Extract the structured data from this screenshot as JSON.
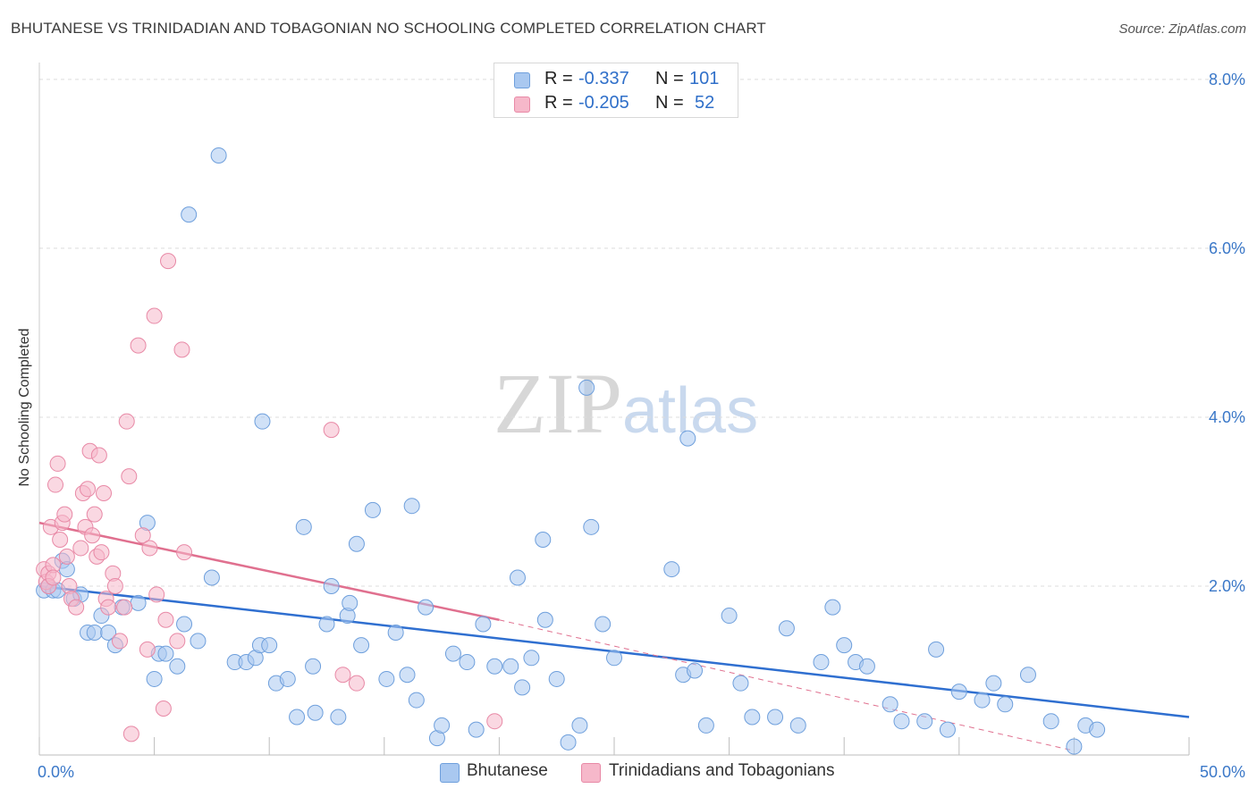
{
  "header": {
    "title": "BHUTANESE VS TRINIDADIAN AND TOBAGONIAN NO SCHOOLING COMPLETED CORRELATION CHART",
    "source": "Source: ZipAtlas.com"
  },
  "watermark": {
    "zip": "ZIP",
    "atlas": "atlas"
  },
  "stats": {
    "rows": [
      {
        "r_label": "R =",
        "r_value": "-0.337",
        "n_label": "N =",
        "n_value": "101",
        "color": "#a9c8f0"
      },
      {
        "r_label": "R =",
        "r_value": "-0.205",
        "n_label": "N =",
        "n_value": "52",
        "color": "#f6b8ca"
      }
    ]
  },
  "legend": {
    "items": [
      {
        "label": "Bhutanese",
        "color": "#a9c8f0"
      },
      {
        "label": "Trinidadians and Tobagonians",
        "color": "#f6b8ca"
      }
    ]
  },
  "chart_data": {
    "type": "scatter",
    "title": "BHUTANESE VS TRINIDADIAN AND TOBAGONIAN NO SCHOOLING COMPLETED CORRELATION CHART",
    "ylabel": "No Schooling Completed",
    "xlabel": "",
    "xlim": [
      0,
      50
    ],
    "ylim": [
      0,
      8.2
    ],
    "x_tick_labels": [
      {
        "value": 0,
        "label": "0.0%"
      },
      {
        "value": 50,
        "label": "50.0%"
      }
    ],
    "y_tick_labels": [
      {
        "value": 2,
        "label": "2.0%"
      },
      {
        "value": 4,
        "label": "4.0%"
      },
      {
        "value": 6,
        "label": "6.0%"
      },
      {
        "value": 8,
        "label": "8.0%"
      }
    ],
    "grid": true,
    "legend_position": "bottom",
    "series": [
      {
        "name": "Bhutanese",
        "color": "#a9c8f0",
        "stroke": "#6e9fdc",
        "trend": {
          "x": [
            0,
            50
          ],
          "y": [
            2.0,
            0.45
          ],
          "color": "#2f6fd0"
        },
        "points": [
          [
            0.2,
            1.95
          ],
          [
            0.4,
            2.0
          ],
          [
            0.6,
            1.95
          ],
          [
            0.8,
            1.95
          ],
          [
            1.0,
            2.3
          ],
          [
            1.2,
            2.2
          ],
          [
            1.5,
            1.85
          ],
          [
            1.8,
            1.9
          ],
          [
            2.1,
            1.45
          ],
          [
            2.4,
            1.45
          ],
          [
            2.7,
            1.65
          ],
          [
            3.0,
            1.45
          ],
          [
            3.3,
            1.3
          ],
          [
            3.6,
            1.75
          ],
          [
            4.3,
            1.8
          ],
          [
            4.7,
            2.75
          ],
          [
            5.2,
            1.2
          ],
          [
            5.5,
            1.2
          ],
          [
            6.0,
            1.05
          ],
          [
            6.3,
            1.55
          ],
          [
            6.9,
            1.35
          ],
          [
            7.5,
            2.1
          ],
          [
            8.5,
            1.1
          ],
          [
            9.0,
            1.1
          ],
          [
            9.4,
            1.15
          ],
          [
            9.6,
            1.3
          ],
          [
            10.0,
            1.3
          ],
          [
            10.3,
            0.85
          ],
          [
            10.8,
            0.9
          ],
          [
            11.2,
            0.45
          ],
          [
            11.9,
            1.05
          ],
          [
            12.0,
            0.5
          ],
          [
            12.5,
            1.55
          ],
          [
            13.0,
            0.45
          ],
          [
            13.4,
            1.65
          ],
          [
            14.0,
            1.3
          ],
          [
            14.5,
            2.9
          ],
          [
            15.1,
            0.9
          ],
          [
            15.5,
            1.45
          ],
          [
            16.0,
            0.95
          ],
          [
            16.4,
            0.65
          ],
          [
            16.8,
            1.75
          ],
          [
            17.3,
            0.2
          ],
          [
            17.5,
            0.35
          ],
          [
            18.0,
            1.2
          ],
          [
            18.6,
            1.1
          ],
          [
            19.0,
            0.3
          ],
          [
            19.3,
            1.55
          ],
          [
            19.8,
            1.05
          ],
          [
            20.5,
            1.05
          ],
          [
            21.0,
            0.8
          ],
          [
            21.4,
            1.15
          ],
          [
            22.0,
            1.6
          ],
          [
            22.5,
            0.9
          ],
          [
            23.0,
            0.15
          ],
          [
            23.5,
            0.35
          ],
          [
            24.0,
            2.7
          ],
          [
            24.5,
            1.55
          ],
          [
            25.0,
            1.15
          ],
          [
            27.5,
            2.2
          ],
          [
            28.0,
            0.95
          ],
          [
            28.5,
            1.0
          ],
          [
            29.0,
            0.35
          ],
          [
            30.0,
            1.65
          ],
          [
            30.5,
            0.85
          ],
          [
            31.0,
            0.45
          ],
          [
            32.0,
            0.45
          ],
          [
            32.5,
            1.5
          ],
          [
            33.0,
            0.35
          ],
          [
            34.0,
            1.1
          ],
          [
            34.5,
            1.75
          ],
          [
            35.0,
            1.3
          ],
          [
            35.5,
            1.1
          ],
          [
            36.0,
            1.05
          ],
          [
            37.0,
            0.6
          ],
          [
            37.5,
            0.4
          ],
          [
            38.5,
            0.4
          ],
          [
            39.0,
            1.25
          ],
          [
            39.5,
            0.3
          ],
          [
            40.0,
            0.75
          ],
          [
            41.0,
            0.65
          ],
          [
            41.5,
            0.85
          ],
          [
            42.0,
            0.6
          ],
          [
            43.0,
            0.95
          ],
          [
            44.0,
            0.4
          ],
          [
            45.0,
            0.1
          ],
          [
            45.5,
            0.35
          ],
          [
            46.0,
            0.3
          ],
          [
            6.5,
            6.4
          ],
          [
            7.8,
            7.1
          ],
          [
            9.7,
            3.95
          ],
          [
            11.5,
            2.7
          ],
          [
            13.8,
            2.5
          ],
          [
            16.2,
            2.95
          ],
          [
            20.8,
            2.1
          ],
          [
            21.9,
            2.55
          ],
          [
            23.8,
            4.35
          ],
          [
            28.2,
            3.75
          ],
          [
            13.5,
            1.8
          ],
          [
            5.0,
            0.9
          ],
          [
            12.7,
            2.0
          ]
        ]
      },
      {
        "name": "Trinidadians and Tobagonians",
        "color": "#f6b8ca",
        "stroke": "#e889a6",
        "trend": {
          "x": [
            0,
            20
          ],
          "y": [
            2.75,
            1.6
          ],
          "color": "#e0708f",
          "dashed_extension": {
            "x": [
              20,
              45
            ],
            "y": [
              1.6,
              0.05
            ]
          }
        },
        "points": [
          [
            0.2,
            2.2
          ],
          [
            0.3,
            2.05
          ],
          [
            0.4,
            2.15
          ],
          [
            0.5,
            2.7
          ],
          [
            0.6,
            2.25
          ],
          [
            0.7,
            3.2
          ],
          [
            0.8,
            3.45
          ],
          [
            0.9,
            2.55
          ],
          [
            1.0,
            2.75
          ],
          [
            1.1,
            2.85
          ],
          [
            1.2,
            2.35
          ],
          [
            1.3,
            2.0
          ],
          [
            1.4,
            1.85
          ],
          [
            1.6,
            1.75
          ],
          [
            1.8,
            2.45
          ],
          [
            1.9,
            3.1
          ],
          [
            2.0,
            2.7
          ],
          [
            2.1,
            3.15
          ],
          [
            2.2,
            3.6
          ],
          [
            2.3,
            2.6
          ],
          [
            2.4,
            2.85
          ],
          [
            2.5,
            2.35
          ],
          [
            2.6,
            3.55
          ],
          [
            2.7,
            2.4
          ],
          [
            2.8,
            3.1
          ],
          [
            2.9,
            1.85
          ],
          [
            3.0,
            1.75
          ],
          [
            3.2,
            2.15
          ],
          [
            3.3,
            2.0
          ],
          [
            3.5,
            1.35
          ],
          [
            3.7,
            1.75
          ],
          [
            3.8,
            3.95
          ],
          [
            4.0,
            0.25
          ],
          [
            4.3,
            4.85
          ],
          [
            4.5,
            2.6
          ],
          [
            4.8,
            2.45
          ],
          [
            5.0,
            5.2
          ],
          [
            5.1,
            1.9
          ],
          [
            5.4,
            0.55
          ],
          [
            5.5,
            1.6
          ],
          [
            5.6,
            5.85
          ],
          [
            6.2,
            4.8
          ],
          [
            6.3,
            2.4
          ],
          [
            6.0,
            1.35
          ],
          [
            12.7,
            3.85
          ],
          [
            13.2,
            0.95
          ],
          [
            13.8,
            0.85
          ],
          [
            19.8,
            0.4
          ],
          [
            0.4,
            2.0
          ],
          [
            0.6,
            2.1
          ],
          [
            3.9,
            3.3
          ],
          [
            4.7,
            1.25
          ]
        ]
      }
    ]
  }
}
